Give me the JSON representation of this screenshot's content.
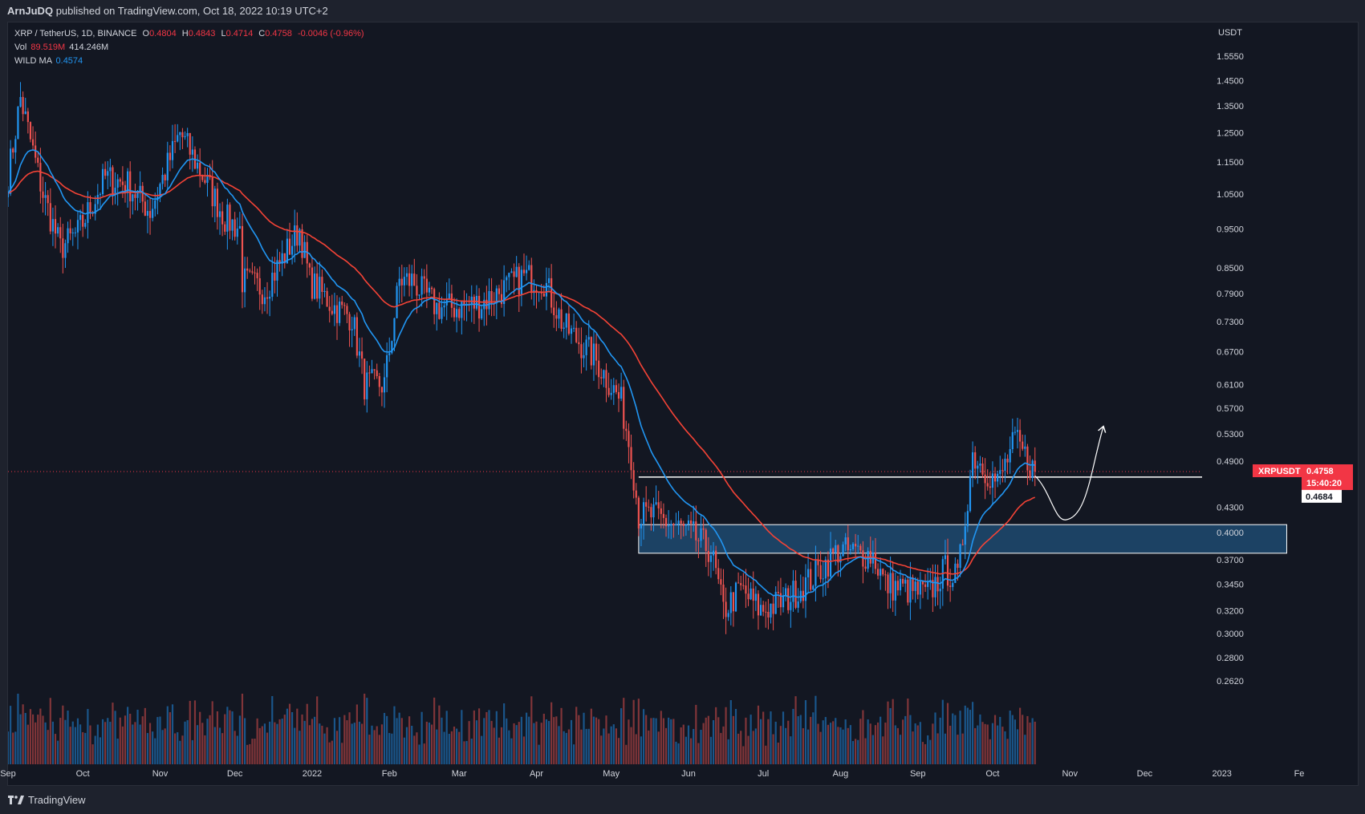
{
  "header": {
    "author": "ArnJuDQ",
    "published_text": "published on TradingView.com, Oct 18, 2022 10:19 UTC+2"
  },
  "legend": {
    "symbol_line": "XRP / TetherUS, 1D, BINANCE",
    "ohlc": {
      "o_label": "O",
      "o": "0.4804",
      "h_label": "H",
      "h": "0.4843",
      "l_label": "L",
      "l": "0.4714",
      "c_label": "C",
      "c": "0.4758",
      "change": "-0.0046 (-0.96%)"
    },
    "vol_label": "Vol",
    "vol_ma": "89.519M",
    "vol_value": "414.246M",
    "wild_ma_label": "WILD MA",
    "wild_ma_value": "0.4574"
  },
  "footer": {
    "brand": "TradingView"
  },
  "colors": {
    "background": "#131722",
    "up": "#2196f3",
    "down": "#ef5350",
    "ma_fast": "#2196f3",
    "ma_slow": "#f44336",
    "zone_fill": "#1e4a70",
    "drawing": "#ffffff",
    "price_badge": "#f23645"
  },
  "chart_data": {
    "type": "candlestick",
    "symbol": "XRPUSDT",
    "price_axis_unit": "USDT",
    "log_scale": true,
    "y_ticks": [
      "1.5550",
      "1.4500",
      "1.3500",
      "1.2500",
      "1.1500",
      "1.0500",
      "0.9500",
      "0.8500",
      "0.7900",
      "0.7300",
      "0.6700",
      "0.6100",
      "0.5700",
      "0.5300",
      "0.4900",
      "0.4300",
      "0.4000",
      "0.3700",
      "0.3450",
      "0.3200",
      "0.3000",
      "0.2800",
      "0.2620"
    ],
    "x_ticks": [
      "Sep",
      "Oct",
      "Nov",
      "Dec",
      "2022",
      "Feb",
      "Mar",
      "Apr",
      "May",
      "Jun",
      "Jul",
      "Aug",
      "Sep",
      "Oct",
      "Nov",
      "Dec",
      "2023",
      "Fe"
    ],
    "x_range": [
      "2021-09-01",
      "2023-02-01"
    ],
    "last_date": "2022-10-18",
    "last_price": "0.4758",
    "countdown": "15:40:20",
    "line_level": "0.4684",
    "zone": {
      "low": 0.377,
      "high": 0.409,
      "from": "2022-05-12",
      "to": "2023-01-27"
    },
    "key_points": [
      {
        "date": "2021-09-01",
        "price": 1.1
      },
      {
        "date": "2021-09-06",
        "price": 1.38
      },
      {
        "date": "2021-09-15",
        "price": 1.05
      },
      {
        "date": "2021-09-22",
        "price": 0.9
      },
      {
        "date": "2021-09-29",
        "price": 0.94
      },
      {
        "date": "2021-10-10",
        "price": 1.1
      },
      {
        "date": "2021-10-19",
        "price": 1.08
      },
      {
        "date": "2021-10-28",
        "price": 1.0
      },
      {
        "date": "2021-11-09",
        "price": 1.25
      },
      {
        "date": "2021-11-20",
        "price": 1.08
      },
      {
        "date": "2021-11-27",
        "price": 0.98
      },
      {
        "date": "2021-12-03",
        "price": 0.95
      },
      {
        "date": "2021-12-04",
        "price": 0.82
      },
      {
        "date": "2021-12-13",
        "price": 0.8
      },
      {
        "date": "2021-12-27",
        "price": 0.95
      },
      {
        "date": "2021-12-31",
        "price": 0.82
      },
      {
        "date": "2022-01-10",
        "price": 0.76
      },
      {
        "date": "2022-01-17",
        "price": 0.74
      },
      {
        "date": "2022-01-22",
        "price": 0.61
      },
      {
        "date": "2022-01-30",
        "price": 0.61
      },
      {
        "date": "2022-02-05",
        "price": 0.82
      },
      {
        "date": "2022-02-10",
        "price": 0.82
      },
      {
        "date": "2022-02-20",
        "price": 0.76
      },
      {
        "date": "2022-03-01",
        "price": 0.76
      },
      {
        "date": "2022-03-10",
        "price": 0.77
      },
      {
        "date": "2022-03-27",
        "price": 0.83
      },
      {
        "date": "2022-04-04",
        "price": 0.82
      },
      {
        "date": "2022-04-12",
        "price": 0.72
      },
      {
        "date": "2022-04-24",
        "price": 0.66
      },
      {
        "date": "2022-05-05",
        "price": 0.58
      },
      {
        "date": "2022-05-09",
        "price": 0.5
      },
      {
        "date": "2022-05-12",
        "price": 0.42
      },
      {
        "date": "2022-05-18",
        "price": 0.42
      },
      {
        "date": "2022-06-01",
        "price": 0.4
      },
      {
        "date": "2022-06-10",
        "price": 0.38
      },
      {
        "date": "2022-06-15",
        "price": 0.32
      },
      {
        "date": "2022-06-22",
        "price": 0.34
      },
      {
        "date": "2022-06-30",
        "price": 0.32
      },
      {
        "date": "2022-07-10",
        "price": 0.33
      },
      {
        "date": "2022-07-20",
        "price": 0.35
      },
      {
        "date": "2022-07-31",
        "price": 0.38
      },
      {
        "date": "2022-08-14",
        "price": 0.375
      },
      {
        "date": "2022-08-19",
        "price": 0.345
      },
      {
        "date": "2022-09-05",
        "price": 0.335
      },
      {
        "date": "2022-09-12",
        "price": 0.36
      },
      {
        "date": "2022-09-17",
        "price": 0.35
      },
      {
        "date": "2022-09-23",
        "price": 0.5
      },
      {
        "date": "2022-10-03",
        "price": 0.46
      },
      {
        "date": "2022-10-10",
        "price": 0.52
      },
      {
        "date": "2022-10-18",
        "price": 0.4758
      }
    ],
    "volume_scale_max_M": 600
  }
}
